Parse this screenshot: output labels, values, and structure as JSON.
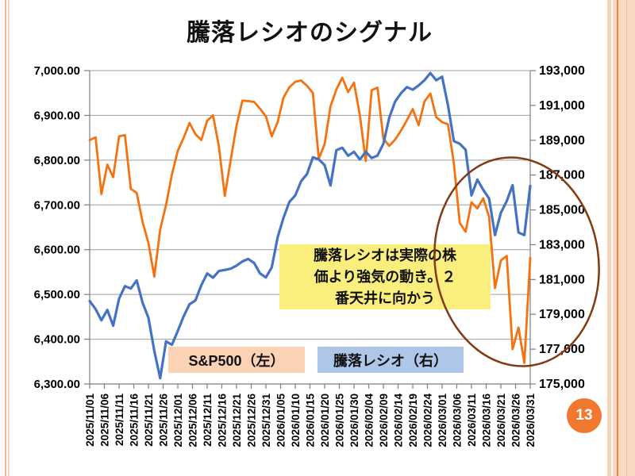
{
  "page": {
    "title": "騰落レシオのシグナル",
    "page_number": "13"
  },
  "colors": {
    "sp500_line": "#f4720f",
    "ratio_line": "#4472c4",
    "grid": "#9e9e9e",
    "axis": "#7f7f7f",
    "legend_sp_bg": "#fbd3b4",
    "legend_ratio_bg": "#aec6e8",
    "annotation_bg": "#faee7d",
    "ellipse": "#823a12",
    "page_badge": "#f0792f"
  },
  "chart_data": {
    "type": "line",
    "title": "騰落レシオのシグナル",
    "grid": true,
    "legend_position": "inside-bottom",
    "x_total_days": 150,
    "x_tick_labels": [
      "2025/11/01",
      "2025/11/06",
      "2025/11/11",
      "2025/11/16",
      "2025/11/21",
      "2025/11/26",
      "2025/12/01",
      "2025/12/06",
      "2025/12/11",
      "2025/12/16",
      "2025/12/21",
      "2025/12/26",
      "2025/12/31",
      "2026/01/05",
      "2026/01/10",
      "2026/01/15",
      "2026/01/20",
      "2026/01/25",
      "2026/01/30",
      "2026/02/04",
      "2026/02/09",
      "2026/02/14",
      "2026/02/19",
      "2026/02/24",
      "2026/03/01",
      "2026/03/06",
      "2026/03/11",
      "2026/03/16",
      "2026/03/21",
      "2026/03/26",
      "2026/03/31"
    ],
    "left_axis": {
      "min": 6300,
      "max": 7000,
      "step": 100,
      "tick_values": [
        7000,
        6900,
        6800,
        6700,
        6600,
        6500,
        6400,
        6300
      ],
      "tick_labels": [
        "7,000.00",
        "6,900.00",
        "6,800.00",
        "6,700.00",
        "6,600.00",
        "6,500.00",
        "6,400.00",
        "6,300.00"
      ]
    },
    "right_axis": {
      "min": 175000,
      "max": 193000,
      "step": 2000,
      "tick_values": [
        193000,
        191000,
        189000,
        187000,
        185000,
        183000,
        181000,
        179000,
        177000,
        175000
      ],
      "tick_labels": [
        "193,000",
        "191,000",
        "189,000",
        "187,000",
        "185,000",
        "183,000",
        "181,000",
        "179,000",
        "177,000",
        "175,000"
      ]
    },
    "series": [
      {
        "name": "S&P500（左）",
        "axis": "left",
        "color": "#f4720f",
        "x_days": [
          0,
          2,
          4,
          6,
          8,
          10,
          12,
          14,
          16,
          18,
          20,
          22,
          24,
          26,
          28,
          30,
          32,
          34,
          36,
          38,
          40,
          42,
          44,
          46,
          48,
          50,
          52,
          54,
          56,
          58,
          60,
          62,
          64,
          66,
          68,
          70,
          72,
          74,
          76,
          78,
          80,
          82,
          84,
          86,
          88,
          90,
          92,
          94,
          96,
          98,
          100,
          102,
          104,
          106,
          108,
          110,
          112,
          114,
          116,
          118,
          120,
          122,
          124,
          126,
          128,
          130,
          132,
          134,
          136,
          138,
          140,
          142,
          144,
          146,
          148,
          150
        ],
        "values": [
          6845,
          6851,
          6724,
          6790,
          6762,
          6853,
          6856,
          6736,
          6727,
          6662,
          6615,
          6540,
          6645,
          6700,
          6768,
          6821,
          6850,
          6883,
          6858,
          6845,
          6888,
          6900,
          6830,
          6720,
          6800,
          6877,
          6933,
          6932,
          6930,
          6915,
          6898,
          6853,
          6885,
          6940,
          6963,
          6975,
          6978,
          6966,
          6950,
          6803,
          6836,
          6920,
          6958,
          6984,
          6952,
          6973,
          6900,
          6798,
          6956,
          6962,
          6848,
          6832,
          6846,
          6866,
          6889,
          6914,
          6878,
          6931,
          6949,
          6896,
          6885,
          6880,
          6793,
          6660,
          6640,
          6706,
          6692,
          6715,
          6673,
          6514,
          6576,
          6586,
          6378,
          6426,
          6347,
          6582
        ]
      },
      {
        "name": "騰落レシオ（右）",
        "axis": "right",
        "color": "#4472c4",
        "x_days": [
          0,
          2,
          4,
          6,
          8,
          10,
          12,
          14,
          16,
          18,
          20,
          22,
          24,
          26,
          28,
          30,
          32,
          34,
          36,
          38,
          40,
          42,
          44,
          46,
          48,
          50,
          52,
          54,
          56,
          58,
          60,
          62,
          64,
          66,
          68,
          70,
          72,
          74,
          76,
          78,
          80,
          82,
          84,
          86,
          88,
          90,
          92,
          94,
          96,
          98,
          100,
          102,
          104,
          106,
          108,
          110,
          112,
          114,
          116,
          118,
          120,
          122,
          124,
          126,
          128,
          130,
          132,
          134,
          136,
          138,
          140,
          142,
          144,
          146,
          148,
          150
        ],
        "values": [
          179760,
          179300,
          178660,
          179250,
          178350,
          179900,
          180620,
          180480,
          180950,
          179670,
          178800,
          176900,
          175330,
          177450,
          177250,
          178050,
          178890,
          179580,
          179800,
          180670,
          181350,
          181100,
          181490,
          181550,
          181620,
          181800,
          182040,
          182180,
          181950,
          181350,
          181120,
          181700,
          183430,
          184550,
          185460,
          185830,
          186650,
          187060,
          188020,
          187900,
          187570,
          186400,
          188430,
          188570,
          188110,
          188340,
          187890,
          188340,
          187980,
          188120,
          188800,
          190300,
          191220,
          191700,
          192050,
          191900,
          192150,
          192450,
          192860,
          192450,
          192650,
          191000,
          188950,
          188800,
          188450,
          185830,
          186740,
          186150,
          185650,
          183550,
          184830,
          185510,
          186420,
          183700,
          183550,
          186380
        ]
      }
    ],
    "legend": [
      {
        "label": "S&P500（左）",
        "bg": "#fbd3b4"
      },
      {
        "label": "騰落レシオ（右）",
        "bg": "#aec6e8"
      }
    ],
    "annotation": {
      "text": "騰落レシオは実際の株価より強気の動き。２番天井に向かう",
      "lines": [
        "騰落レシオは実際の株",
        "価より強気の動き。２",
        "番天井に向かう"
      ]
    },
    "highlight_ellipse": {
      "present": true,
      "color": "#823a12"
    }
  }
}
